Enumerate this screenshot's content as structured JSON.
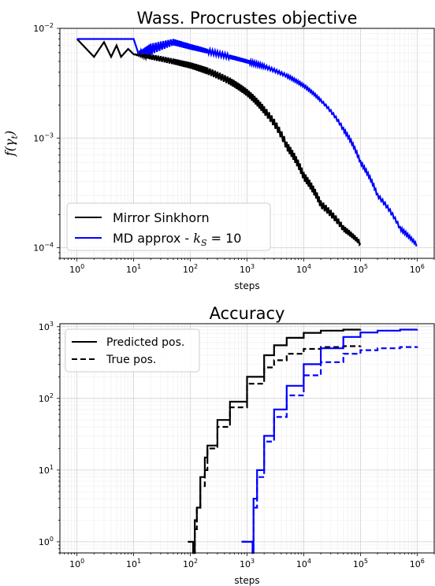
{
  "chart_data": [
    {
      "type": "line",
      "title": "Wass. Procrustes objective",
      "xlabel": "steps",
      "ylabel": "f(γ_t)",
      "xscale": "log",
      "yscale": "log",
      "xlim": [
        0.5,
        2000000
      ],
      "ylim": [
        8e-05,
        0.01
      ],
      "x_ticks": [
        "10^0",
        "10^1",
        "10^2",
        "10^3",
        "10^4",
        "10^5",
        "10^6"
      ],
      "y_ticks": [
        "10^-4",
        "10^-3",
        "10^-2"
      ],
      "grid": true,
      "legend": "lower-left",
      "series": [
        {
          "name": "Mirror Sinkhorn",
          "color": "#000000",
          "x": [
            1,
            2,
            3,
            4,
            5,
            6,
            8,
            10,
            20,
            50,
            100,
            200,
            500,
            1000,
            2000,
            5000,
            10000,
            20000,
            50000,
            100000
          ],
          "y": [
            0.008,
            0.0055,
            0.0075,
            0.0055,
            0.007,
            0.0055,
            0.0065,
            0.0058,
            0.0055,
            0.005,
            0.0046,
            0.0041,
            0.0033,
            0.0026,
            0.0018,
            0.00085,
            0.00045,
            0.00025,
            0.00015,
            0.00011
          ],
          "band": [
            0,
            0,
            0,
            0,
            0,
            0,
            0,
            0,
            0.0006,
            0.0006,
            0.0006,
            0.0006,
            0.0005,
            0.0004,
            0.0003,
            0.00015,
            8e-05,
            4e-05,
            2e-05,
            1e-05
          ]
        },
        {
          "name": "MD approx - k_S = 10",
          "color": "#0000ff",
          "x": [
            1,
            10,
            12,
            20,
            50,
            100,
            200,
            500,
            1000,
            2000,
            5000,
            10000,
            20000,
            50000,
            100000,
            200000,
            500000,
            1000000
          ],
          "y": [
            0.008,
            0.008,
            0.006,
            0.0065,
            0.0075,
            0.0068,
            0.0062,
            0.0055,
            0.005,
            0.0045,
            0.0037,
            0.003,
            0.0022,
            0.0012,
            0.0006,
            0.0003,
            0.00015,
            0.000105
          ],
          "band": [
            0,
            0,
            0,
            0.0015,
            0.001,
            0.0008,
            0.0006,
            0.0005,
            0.0004,
            0.0003,
            0.0002,
            0.00015,
            0.0001,
            8e-05,
            4e-05,
            2e-05,
            1e-05,
            5e-06
          ]
        }
      ]
    },
    {
      "type": "line",
      "title": "Accuracy",
      "xlabel": "steps",
      "xscale": "log",
      "yscale": "log",
      "xlim": [
        0.5,
        2000000
      ],
      "ylim": [
        0.7,
        1100
      ],
      "x_ticks": [
        "10^0",
        "10^1",
        "10^2",
        "10^3",
        "10^4",
        "10^5",
        "10^6"
      ],
      "y_ticks": [
        "10^0",
        "10^1",
        "10^2",
        "10^3"
      ],
      "grid": true,
      "legend": "top-left",
      "series": [
        {
          "name": "Predicted pos.",
          "color": "#000000",
          "dash": "solid",
          "x": [
            90,
            110,
            112,
            120,
            130,
            150,
            180,
            200,
            300,
            500,
            1000,
            2000,
            3000,
            5000,
            10000,
            20000,
            50000,
            100000
          ],
          "y": [
            1,
            1,
            0.7,
            2,
            3,
            8,
            15,
            22,
            50,
            90,
            200,
            400,
            550,
            700,
            820,
            880,
            910,
            920
          ]
        },
        {
          "name": "True pos.",
          "color": "#000000",
          "dash": "dashed",
          "x": [
            110,
            120,
            130,
            150,
            180,
            200,
            300,
            500,
            1000,
            2000,
            3000,
            5000,
            10000,
            20000,
            50000,
            100000
          ],
          "y": [
            0.7,
            1.5,
            3,
            6,
            10,
            20,
            40,
            75,
            160,
            270,
            340,
            420,
            490,
            520,
            535,
            540
          ]
        },
        {
          "name": "",
          "color": "#0000ff",
          "dash": "solid",
          "x": [
            800,
            1200,
            1250,
            1300,
            1500,
            2000,
            3000,
            5000,
            10000,
            20000,
            50000,
            100000,
            200000,
            500000,
            1000000
          ],
          "y": [
            1,
            1,
            0.7,
            4,
            10,
            30,
            70,
            150,
            300,
            500,
            720,
            830,
            880,
            910,
            920
          ]
        },
        {
          "name": "",
          "color": "#0000ff",
          "dash": "dashed",
          "x": [
            800,
            1200,
            1250,
            1300,
            1500,
            2000,
            3000,
            5000,
            10000,
            20000,
            50000,
            100000,
            200000,
            500000,
            1000000
          ],
          "y": [
            1,
            1,
            0.7,
            3,
            8,
            25,
            55,
            110,
            210,
            320,
            420,
            470,
            500,
            520,
            530
          ]
        }
      ]
    }
  ]
}
